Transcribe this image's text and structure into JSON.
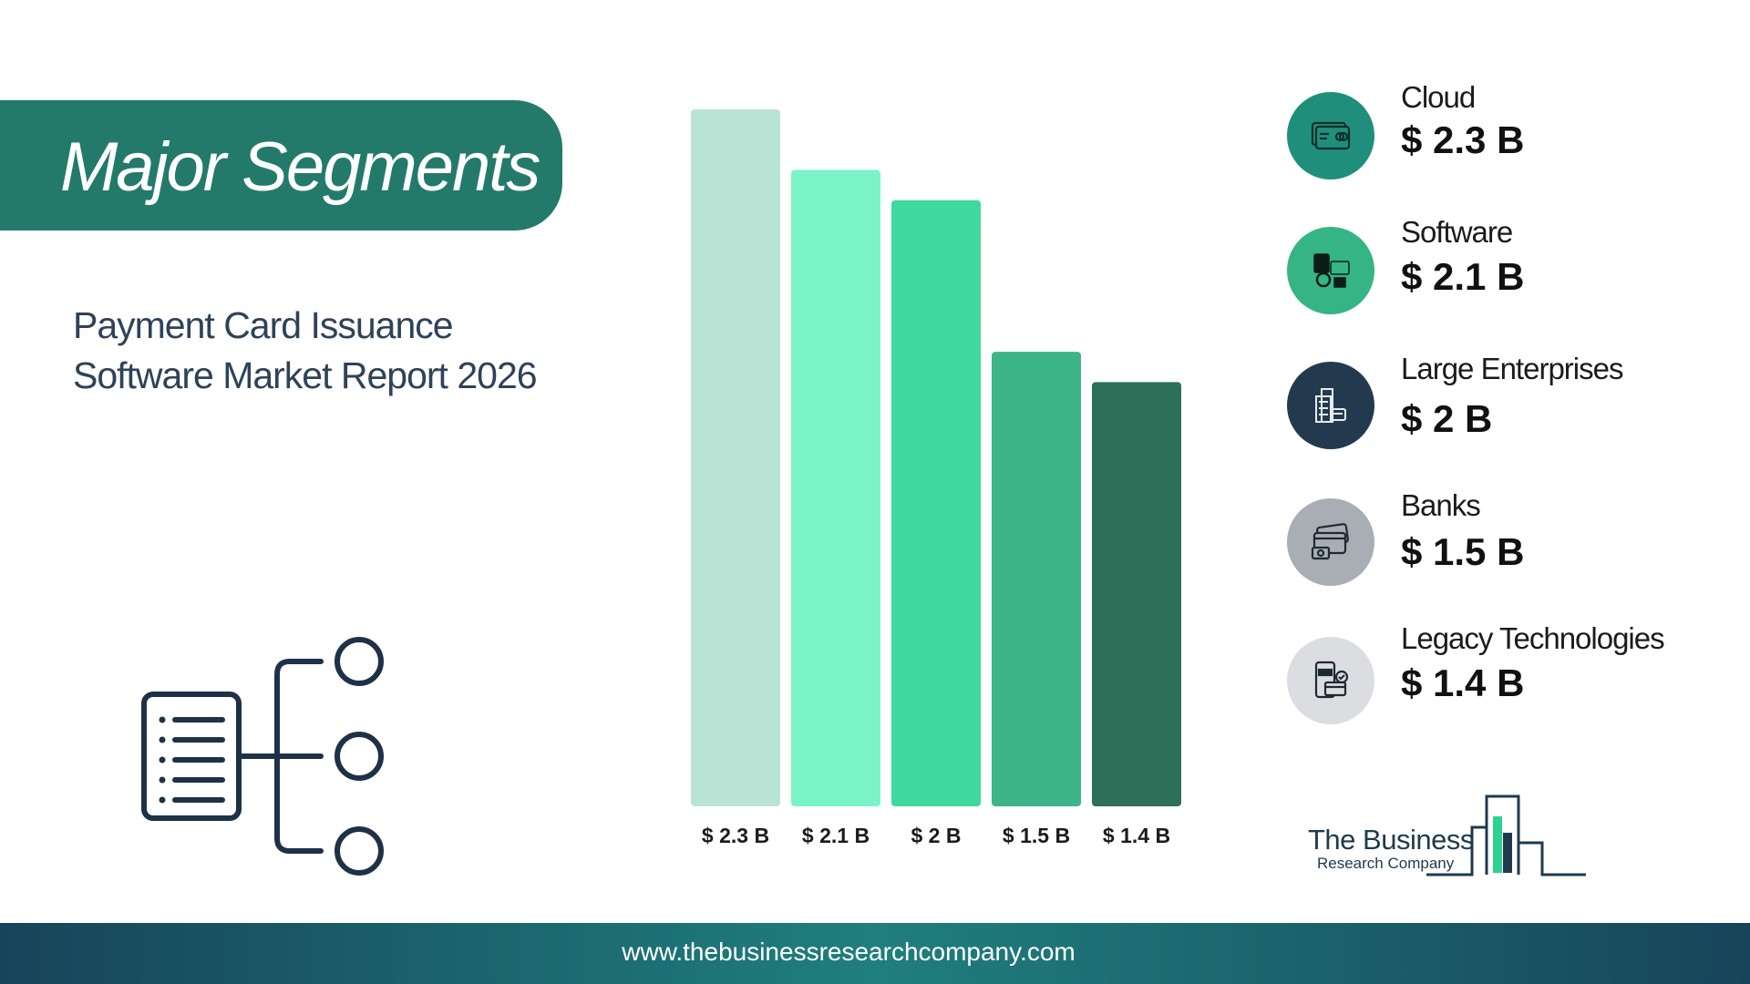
{
  "banner": {
    "title": "Major Segments"
  },
  "report": {
    "title_line1": "Payment Card Issuance",
    "title_line2": "Software Market Report 2026"
  },
  "chart_data": {
    "type": "bar",
    "categories": [
      "Cloud",
      "Software",
      "Large Enterprises",
      "Banks",
      "Legacy Technologies"
    ],
    "values": [
      2.3,
      2.1,
      2.0,
      1.5,
      1.4
    ],
    "bar_labels": [
      "$ 2.3 B",
      "$ 2.1 B",
      "$ 2 B",
      "$ 1.5 B",
      "$ 1.4 B"
    ],
    "colors": [
      "#b9e4d5",
      "#7af4c6",
      "#3fd89d",
      "#3db589",
      "#2d7059"
    ],
    "ylim": [
      0,
      2.3
    ],
    "grid": false,
    "legend": "right"
  },
  "segments": [
    {
      "name": "Cloud",
      "value": "$ 2.3 B",
      "icon": "credit-card-icon",
      "color": "#1f8f7c"
    },
    {
      "name": "Software",
      "value": "$ 2.1 B",
      "icon": "payment-terminal-icon",
      "color": "#35b586"
    },
    {
      "name": "Large Enterprises",
      "value": "$ 2 B",
      "icon": "office-building-icon",
      "color": "#233a4e"
    },
    {
      "name": "Banks",
      "value": "$ 1.5 B",
      "icon": "cards-cash-icon",
      "color": "#a9adb4"
    },
    {
      "name": "Legacy Technologies",
      "value": "$ 1.4 B",
      "icon": "mobile-pay-icon",
      "color": "#dcdde0"
    }
  ],
  "logo": {
    "line1": "The Business",
    "line2": "Research Company"
  },
  "footer": {
    "url": "www.thebusinessresearchcompany.com"
  }
}
